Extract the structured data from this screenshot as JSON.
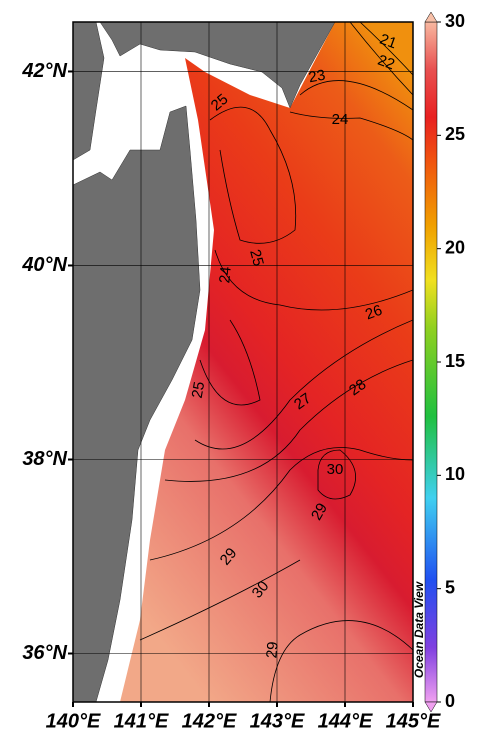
{
  "map": {
    "lon_range": [
      140,
      145
    ],
    "lat_range": [
      35.5,
      42.51
    ],
    "lon_ticks": [
      {
        "value": 140,
        "label": "140°E"
      },
      {
        "value": 141,
        "label": "141°E"
      },
      {
        "value": 142,
        "label": "142°E"
      },
      {
        "value": 143,
        "label": "143°E"
      },
      {
        "value": 144,
        "label": "144°E"
      },
      {
        "value": 145,
        "label": "145°E"
      }
    ],
    "lat_ticks": [
      {
        "value": 36,
        "label": "36°N"
      },
      {
        "value": 38,
        "label": "38°N"
      },
      {
        "value": 40,
        "label": "40°N"
      },
      {
        "value": 42,
        "label": "42°N"
      }
    ],
    "colorbar": {
      "range": [
        0,
        30
      ],
      "ticks": [
        0,
        5,
        10,
        15,
        20,
        25,
        30
      ]
    },
    "contour_labels": [
      21,
      22,
      23,
      24,
      25,
      25,
      24,
      26,
      25,
      27,
      28,
      30,
      29,
      29,
      30,
      29
    ],
    "watermark": "Ocean Data View"
  }
}
